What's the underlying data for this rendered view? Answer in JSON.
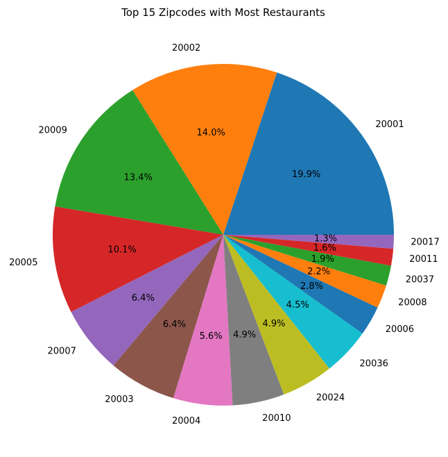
{
  "chart_data": {
    "type": "pie",
    "title": "Top 15 Zipcodes with Most Restaurants",
    "start_angle_deg": 0,
    "direction": "counterclockwise",
    "slices": [
      {
        "label": "20001",
        "value": 19.9,
        "pct_text": "19.9%",
        "color": "#1f77b4"
      },
      {
        "label": "20002",
        "value": 14.0,
        "pct_text": "14.0%",
        "color": "#ff7f0e"
      },
      {
        "label": "20009",
        "value": 13.4,
        "pct_text": "13.4%",
        "color": "#2ca02c"
      },
      {
        "label": "20005",
        "value": 10.1,
        "pct_text": "10.1%",
        "color": "#d62728"
      },
      {
        "label": "20007",
        "value": 6.4,
        "pct_text": "6.4%",
        "color": "#9467bd"
      },
      {
        "label": "20003",
        "value": 6.4,
        "pct_text": "6.4%",
        "color": "#8c564b"
      },
      {
        "label": "20004",
        "value": 5.6,
        "pct_text": "5.6%",
        "color": "#e377c2"
      },
      {
        "label": "20010",
        "value": 4.9,
        "pct_text": "4.9%",
        "color": "#7f7f7f"
      },
      {
        "label": "20024",
        "value": 4.9,
        "pct_text": "4.9%",
        "color": "#bcbd22"
      },
      {
        "label": "20036",
        "value": 4.5,
        "pct_text": "4.5%",
        "color": "#17becf"
      },
      {
        "label": "20006",
        "value": 2.8,
        "pct_text": "2.8%",
        "color": "#1f77b4"
      },
      {
        "label": "20008",
        "value": 2.2,
        "pct_text": "2.2%",
        "color": "#ff7f0e"
      },
      {
        "label": "20037",
        "value": 1.9,
        "pct_text": "1.9%",
        "color": "#2ca02c"
      },
      {
        "label": "20011",
        "value": 1.6,
        "pct_text": "1.6%",
        "color": "#d62728"
      },
      {
        "label": "20017",
        "value": 1.3,
        "pct_text": "1.3%",
        "color": "#9467bd"
      }
    ]
  }
}
